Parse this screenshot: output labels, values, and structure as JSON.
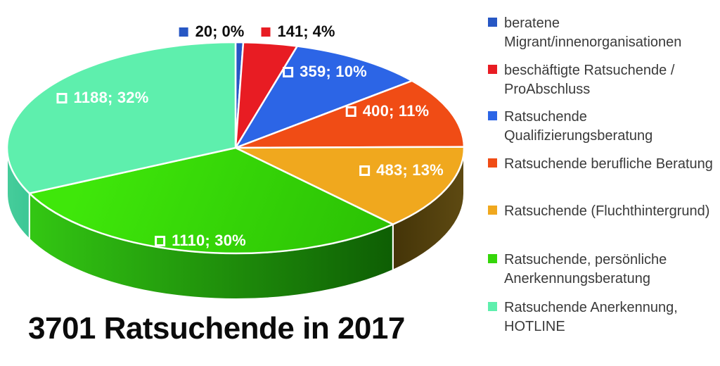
{
  "title": "3701 Ratsuchende in 2017",
  "chart_data": {
    "type": "pie",
    "style": "3d",
    "title": "3701 Ratsuchende in 2017",
    "total": 3701,
    "label_format": "value; percent",
    "legend_position": "right",
    "slices": [
      {
        "label": "beratene Migrant/innenorganisationen",
        "value": 20,
        "pct": 0,
        "display": "20; 0%",
        "color": "#2757C4"
      },
      {
        "label": "beschäftigte Ratsuchende / ProAbschluss",
        "value": 141,
        "pct": 4,
        "display": "141; 4%",
        "color": "#E81C23"
      },
      {
        "label": "Ratsuchende Qualifizierungsberatung",
        "value": 359,
        "pct": 10,
        "display": "359; 10%",
        "color": "#2C65E6"
      },
      {
        "label": "Ratsuchende berufliche Beratung",
        "value": 400,
        "pct": 11,
        "display": "400; 11%",
        "color": "#F04C15"
      },
      {
        "label": "Ratsuchende (Fluchthintergrund)",
        "value": 483,
        "pct": 13,
        "display": "483; 13%",
        "color": "#F0A81E",
        "side_from": "#5E4A12",
        "side_to": "#443408"
      },
      {
        "label": "Ratsuchende, persönliche Anerkennungsberatung",
        "value": 1110,
        "pct": 30,
        "display": "1110; 30%",
        "color": "#35D60A",
        "top_from": "#3FE70A",
        "top_to": "#2ABF04",
        "side_from": "#0E5E04",
        "side_to": "#33C713"
      },
      {
        "label": "Ratsuchende Anerkennung, HOTLINE",
        "value": 1188,
        "pct": 32,
        "display": "1188; 32%",
        "color": "#5EEFAD",
        "side_from": "#3CC795",
        "side_to": "#46CD9B"
      }
    ]
  },
  "legend": {
    "items": [
      {
        "lines": [
          "beratene",
          "Migrant/innenorganisationen"
        ],
        "color": "#2757C4"
      },
      {
        "lines": [
          "beschäftigte Ratsuchende /",
          "ProAbschluss"
        ],
        "color": "#E81C23"
      },
      {
        "lines": [
          "Ratsuchende",
          "Qualifizierungsberatung"
        ],
        "color": "#2C65E6"
      },
      {
        "lines": [
          "Ratsuchende berufliche Beratung"
        ],
        "color": "#F04C15"
      },
      {
        "lines": [
          "Ratsuchende (Fluchthintergrund)"
        ],
        "color": "#F0A81E"
      },
      {
        "lines": [
          "Ratsuchende, persönliche",
          "Anerkennungsberatung"
        ],
        "color": "#35D60A"
      },
      {
        "lines": [
          "Ratsuchende Anerkennung,",
          "HOTLINE"
        ],
        "color": "#5EEFAD"
      }
    ]
  }
}
